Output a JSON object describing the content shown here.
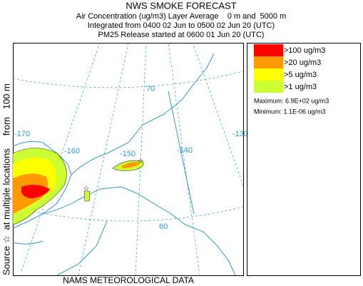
{
  "header": {
    "title": "NWS SMOKE FORECAST",
    "lines": [
      "Air Concentration (ug/m3) Layer Average    0 m and  5000 m",
      "Integrated from 0400 02 Jun to 0500 02 Jun 20 (UTC)",
      "PM25 Release started at 0600 01 Jun 20 (UTC)"
    ]
  },
  "side_label": "Source ☆  at multiple locations     from   100 m",
  "footer": "NAMS METEOROLOGICAL DATA",
  "legend": {
    "items": [
      {
        "label": ">100 ug/m3",
        "color": "#ff0000"
      },
      {
        "label": ">20 ug/m3",
        "color": "#ff9900"
      },
      {
        "label": ">5 ug/m3",
        "color": "#ffff00"
      },
      {
        "label": ">1 ug/m3",
        "color": "#ccff33"
      }
    ],
    "maximum": "Maximum: 6.9E+02 ug/m3",
    "minimum": "Minimum: 1.1E-06 ug/m3"
  },
  "map": {
    "longitude_labels": [
      "-170",
      "-160",
      "-150",
      "-140",
      "-130"
    ],
    "latitude_labels": [
      "70",
      "60"
    ]
  }
}
